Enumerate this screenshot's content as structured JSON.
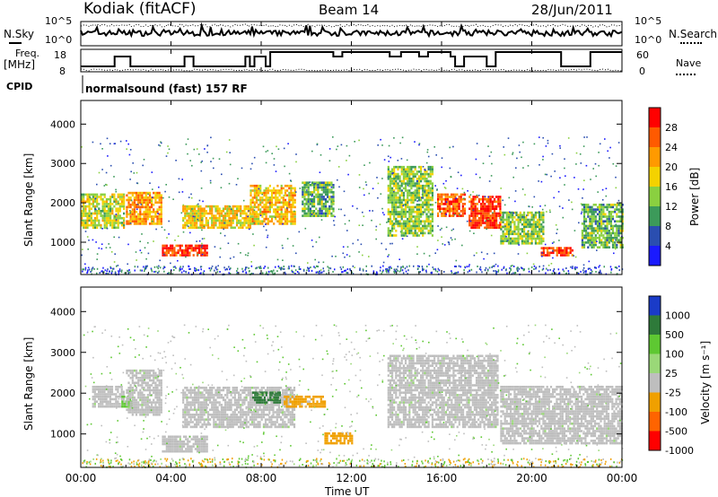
{
  "header": {
    "station": "Kodiak (fitACF)",
    "beam": "Beam 14",
    "date": "28/Jun/2011"
  },
  "side_labels": {
    "nsky": "N.Sky",
    "nsearch": "N.Search",
    "freq": "Freq.",
    "freq_unit": "[MHz]",
    "nave": "Nave",
    "cpid": "CPID",
    "cpid_value": "normalsound (fast) 157 RF"
  },
  "noise_panel": {
    "left_ticks": [
      "10^5",
      "10^0"
    ],
    "right_ticks": [
      "10^5",
      "10^0"
    ]
  },
  "freq_panel": {
    "left_ticks": [
      "18",
      "8"
    ],
    "right_ticks": [
      "60",
      "0"
    ],
    "freq_steps": [
      [
        0.0,
        1
      ],
      [
        1.5,
        1
      ],
      [
        1.5,
        3
      ],
      [
        2.2,
        3
      ],
      [
        2.2,
        1
      ],
      [
        4.6,
        1
      ],
      [
        4.6,
        3
      ],
      [
        5.0,
        3
      ],
      [
        5.0,
        1
      ],
      [
        7.3,
        1
      ],
      [
        7.3,
        3
      ],
      [
        7.5,
        3
      ],
      [
        7.5,
        1
      ],
      [
        7.7,
        1
      ],
      [
        7.7,
        3
      ],
      [
        8.2,
        3
      ],
      [
        8.2,
        1
      ],
      [
        8.4,
        1
      ],
      [
        8.4,
        4
      ],
      [
        10.0,
        4
      ],
      [
        10.0,
        4
      ],
      [
        11.2,
        4
      ],
      [
        11.2,
        3
      ],
      [
        11.6,
        3
      ],
      [
        11.6,
        4
      ],
      [
        13.7,
        4
      ],
      [
        13.7,
        3
      ],
      [
        14.2,
        3
      ],
      [
        14.2,
        4
      ],
      [
        15.0,
        4
      ],
      [
        15.0,
        3
      ],
      [
        15.4,
        3
      ],
      [
        15.4,
        4
      ],
      [
        16.4,
        4
      ],
      [
        16.4,
        3
      ],
      [
        16.6,
        3
      ],
      [
        16.6,
        1
      ],
      [
        17.0,
        1
      ],
      [
        17.0,
        3
      ],
      [
        18.0,
        3
      ],
      [
        18.0,
        1
      ],
      [
        18.4,
        1
      ],
      [
        18.4,
        4
      ],
      [
        21.3,
        4
      ],
      [
        21.3,
        1
      ],
      [
        22.6,
        1
      ],
      [
        22.6,
        4
      ],
      [
        24.0,
        4
      ]
    ]
  },
  "power_panel": {
    "ylabel": "Slant Range [km]",
    "y_ticks": [
      "4000",
      "3000",
      "2000",
      "1000"
    ],
    "colorbar_label": "Power [dB]",
    "colorbar_ticks": [
      "28",
      "24",
      "20",
      "16",
      "12",
      "8",
      "4"
    ],
    "colors": [
      "#ff0000",
      "#ff5a00",
      "#ff9a00",
      "#f4d200",
      "#8ad040",
      "#3c9a5a",
      "#2a4eb0",
      "#1a1aff"
    ]
  },
  "velocity_panel": {
    "ylabel": "Slant Range [km]",
    "y_ticks": [
      "4000",
      "3000",
      "2000",
      "1000"
    ],
    "colorbar_label": "Velocity [m s⁻¹]",
    "colorbar_ticks": [
      "1000",
      "500",
      "100",
      "25",
      "-25",
      "-100",
      "-500",
      "-1000"
    ],
    "colors": [
      "#1a3bc8",
      "#2e7a3a",
      "#5ec832",
      "#9ad878",
      "#bebebe",
      "#f0a000",
      "#ff6400",
      "#ff0000"
    ]
  },
  "x_axis": {
    "label": "Time UT",
    "ticks": [
      "00:00",
      "04:00",
      "08:00",
      "12:00",
      "16:00",
      "20:00",
      "00:00"
    ]
  },
  "chart_data": [
    {
      "type": "heatmap",
      "title": "Power",
      "x_range_hours": [
        0,
        24
      ],
      "ylim_km": [
        180,
        4600
      ],
      "ylabel": "Slant Range [km]",
      "colorbar_ticks_db": [
        4,
        8,
        12,
        16,
        20,
        24,
        28
      ],
      "echo_bands": [
        {
          "t0": 0.0,
          "t1": 1.9,
          "r0": 1400,
          "r1": 2300,
          "level": 14
        },
        {
          "t0": 2.0,
          "t1": 3.6,
          "r0": 1500,
          "r1": 2300,
          "level": 20
        },
        {
          "t0": 3.6,
          "t1": 5.6,
          "r0": 700,
          "r1": 1000,
          "level": 26
        },
        {
          "t0": 4.5,
          "t1": 7.5,
          "r0": 1400,
          "r1": 2000,
          "level": 17
        },
        {
          "t0": 7.5,
          "t1": 9.5,
          "r0": 1500,
          "r1": 2500,
          "level": 18
        },
        {
          "t0": 9.8,
          "t1": 11.2,
          "r0": 1700,
          "r1": 2600,
          "level": 10
        },
        {
          "t0": 13.6,
          "t1": 15.6,
          "r0": 1200,
          "r1": 3000,
          "level": 12
        },
        {
          "t0": 15.8,
          "t1": 17.0,
          "r0": 1700,
          "r1": 2300,
          "level": 24
        },
        {
          "t0": 17.2,
          "t1": 18.6,
          "r0": 1400,
          "r1": 2200,
          "level": 26
        },
        {
          "t0": 18.6,
          "t1": 20.5,
          "r0": 1000,
          "r1": 1800,
          "level": 12
        },
        {
          "t0": 20.4,
          "t1": 21.8,
          "r0": 700,
          "r1": 900,
          "level": 26
        },
        {
          "t0": 22.2,
          "t1": 24.0,
          "r0": 900,
          "r1": 2000,
          "level": 10
        }
      ]
    },
    {
      "type": "heatmap",
      "title": "Velocity",
      "x_range_hours": [
        0,
        24
      ],
      "ylim_km": [
        180,
        4600
      ],
      "ylabel": "Slant Range [km]",
      "colorbar_ticks_ms": [
        1000,
        500,
        100,
        25,
        -25,
        -100,
        -500,
        -1000
      ],
      "echo_bands": [
        {
          "t0": 0.5,
          "t1": 1.9,
          "r0": 1700,
          "r1": 2200,
          "level": 0
        },
        {
          "t0": 1.8,
          "t1": 2.3,
          "r0": 1700,
          "r1": 2000,
          "level": 150
        },
        {
          "t0": 2.0,
          "t1": 3.6,
          "r0": 1500,
          "r1": 2600,
          "level": 0
        },
        {
          "t0": 3.6,
          "t1": 5.6,
          "r0": 600,
          "r1": 1000,
          "level": 0
        },
        {
          "t0": 4.5,
          "t1": 9.5,
          "r0": 1200,
          "r1": 2200,
          "level": 0
        },
        {
          "t0": 7.6,
          "t1": 8.8,
          "r0": 1800,
          "r1": 2100,
          "level": 600
        },
        {
          "t0": 9.0,
          "t1": 10.8,
          "r0": 1700,
          "r1": 2000,
          "level": -120
        },
        {
          "t0": 10.8,
          "t1": 12.0,
          "r0": 800,
          "r1": 1100,
          "level": -120
        },
        {
          "t0": 13.6,
          "t1": 18.5,
          "r0": 1200,
          "r1": 3000,
          "level": 0
        },
        {
          "t0": 18.6,
          "t1": 24.0,
          "r0": 800,
          "r1": 2200,
          "level": 0
        }
      ]
    }
  ]
}
